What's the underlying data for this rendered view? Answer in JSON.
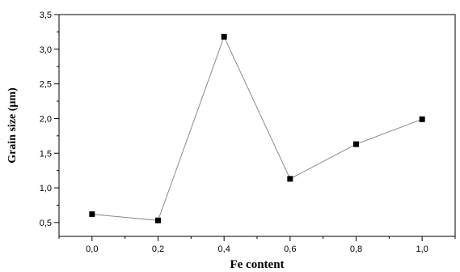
{
  "chart_data": {
    "type": "line",
    "xlabel": "Fe content",
    "ylabel": "Grain size (µm)",
    "xlim": [
      -0.1,
      1.1
    ],
    "ylim": [
      0.3,
      3.5
    ],
    "x_ticks": [
      "0,0",
      "0,2",
      "0,4",
      "0,6",
      "0,8",
      "1,0"
    ],
    "y_ticks": [
      "0,5",
      "1,0",
      "1,5",
      "2,0",
      "2,5",
      "3,0",
      "3,5"
    ],
    "series": [
      {
        "x": [
          0.0,
          0.2,
          0.4,
          0.6,
          0.8,
          1.0
        ],
        "y": [
          0.62,
          0.53,
          3.18,
          1.13,
          1.63,
          1.99
        ]
      }
    ],
    "grid": false,
    "line_color": "#8a8a8a",
    "marker_color": "#000000"
  }
}
